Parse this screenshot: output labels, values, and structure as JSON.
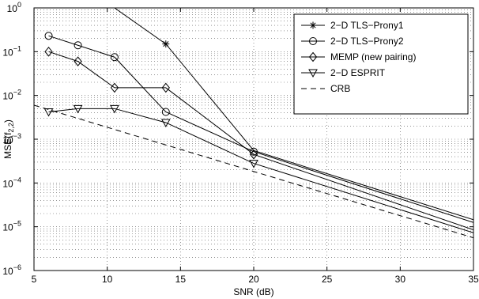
{
  "chart_data": {
    "type": "line",
    "xlabel": "SNR (dB)",
    "ylabel": "MSE(f",
    "ylabel_sub": "2,2",
    "ylabel_close": ")",
    "xlim": [
      5,
      35
    ],
    "ylim": [
      1e-06,
      1
    ],
    "yscale": "log",
    "grid": true,
    "legend_position": "top-right",
    "x_ticks": [
      5,
      10,
      15,
      20,
      25,
      30,
      35
    ],
    "x_tick_labels": [
      "5",
      "10",
      "15",
      "20",
      "25",
      "30",
      "35"
    ],
    "y_ticks": [
      {
        "value": 1e-06,
        "base": "10",
        "exp": "−6"
      },
      {
        "value": 1e-05,
        "base": "10",
        "exp": "−5"
      },
      {
        "value": 0.0001,
        "base": "10",
        "exp": "−4"
      },
      {
        "value": 0.001,
        "base": "10",
        "exp": "−3"
      },
      {
        "value": 0.01,
        "base": "10",
        "exp": "−2"
      },
      {
        "value": 0.1,
        "base": "10",
        "exp": "−1"
      },
      {
        "value": 1,
        "base": "10",
        "exp": "0"
      }
    ],
    "series": [
      {
        "name": "2−D TLS−Prony1",
        "marker": "star",
        "dash": "solid",
        "x": [
          10.5,
          14,
          20,
          35
        ],
        "y": [
          1.0,
          0.15,
          0.00055,
          1.45e-05
        ]
      },
      {
        "name": "2−D TLS−Prony2",
        "marker": "circle",
        "dash": "solid",
        "x": [
          6,
          8,
          10.5,
          14,
          20,
          35
        ],
        "y": [
          0.23,
          0.14,
          0.075,
          0.0042,
          0.00052,
          1.25e-05
        ]
      },
      {
        "name": "MEMP (new pairing)",
        "marker": "diamond",
        "dash": "solid",
        "x": [
          6,
          8,
          10.5,
          14,
          20,
          35
        ],
        "y": [
          0.1,
          0.06,
          0.015,
          0.015,
          0.00045,
          8.5e-06
        ]
      },
      {
        "name": "2−D ESPRIT",
        "marker": "triangle-down",
        "dash": "solid",
        "x": [
          6,
          8,
          10.5,
          14,
          20,
          35
        ],
        "y": [
          0.0042,
          0.005,
          0.005,
          0.0024,
          0.00028,
          7.3e-06
        ]
      },
      {
        "name": "CRB",
        "marker": "none",
        "dash": "dashed",
        "x": [
          5,
          35
        ],
        "y": [
          0.006,
          5.6e-06
        ]
      }
    ]
  }
}
